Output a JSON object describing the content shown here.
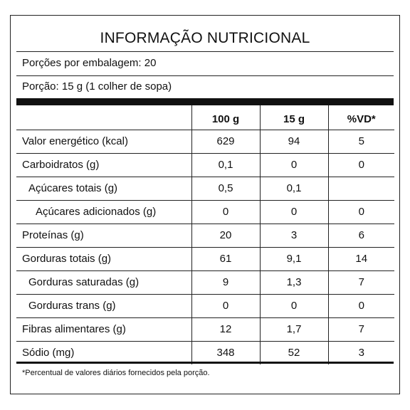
{
  "label": {
    "title": "INFORMAÇÃO NUTRICIONAL",
    "servings_per_package": "Porções por embalagem: 20",
    "serving_size": "Porção: 15 g (1 colher de sopa)",
    "columns": [
      "",
      "100 g",
      "15 g",
      "%VD*"
    ],
    "rows": [
      {
        "name": "Valor energético (kcal)",
        "per_100g": "629",
        "per_serving": "94",
        "dv": "5"
      },
      {
        "name": "Carboidratos (g)",
        "per_100g": "0,1",
        "per_serving": "0",
        "dv": "0"
      },
      {
        "name": "Açúcares totais (g)",
        "per_100g": "0,5",
        "per_serving": "0,1",
        "dv": ""
      },
      {
        "name": "Açúcares adicionados (g)",
        "per_100g": "0",
        "per_serving": "0",
        "dv": "0"
      },
      {
        "name": "Proteínas (g)",
        "per_100g": "20",
        "per_serving": "3",
        "dv": "6"
      },
      {
        "name": "Gorduras totais (g)",
        "per_100g": "61",
        "per_serving": "9,1",
        "dv": "14"
      },
      {
        "name": "Gorduras saturadas (g)",
        "per_100g": "9",
        "per_serving": "1,3",
        "dv": "7"
      },
      {
        "name": "Gorduras trans (g)",
        "per_100g": "0",
        "per_serving": "0",
        "dv": "0"
      },
      {
        "name": "Fibras alimentares (g)",
        "per_100g": "12",
        "per_serving": "1,7",
        "dv": "7"
      },
      {
        "name": "Sódio (mg)",
        "per_100g": "348",
        "per_serving": "52",
        "dv": "3"
      }
    ],
    "footnote": "*Percentual de valores diários fornecidos pela porção."
  }
}
